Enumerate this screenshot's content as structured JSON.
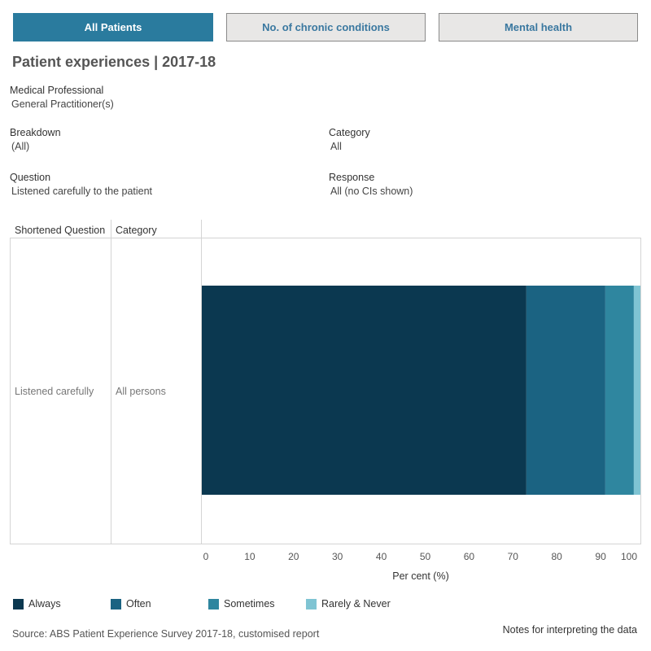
{
  "tabs": [
    {
      "label": "All Patients",
      "active": true
    },
    {
      "label": "No. of chronic conditions",
      "active": false
    },
    {
      "label": "Mental health",
      "active": false
    }
  ],
  "title": "Patient experiences | 2017-18",
  "filters": {
    "medical_professional": {
      "label": "Medical Professional",
      "value": "General Practitioner(s)"
    },
    "breakdown": {
      "label": "Breakdown",
      "value": "(All)"
    },
    "category": {
      "label": "Category",
      "value": "All"
    },
    "question": {
      "label": "Question",
      "value": "Listened carefully to the patient"
    },
    "response": {
      "label": "Response",
      "value": "All (no CIs shown)"
    }
  },
  "table": {
    "headers": [
      "Shortened Question",
      "Category"
    ],
    "rows": [
      {
        "question": "Listened carefully",
        "category": "All persons"
      }
    ]
  },
  "chart_data": {
    "type": "bar",
    "orientation": "horizontal",
    "stacked": true,
    "categories": [
      "Listened carefully"
    ],
    "series": [
      {
        "name": "Always",
        "values": [
          74.0
        ],
        "color": "#0b3850"
      },
      {
        "name": "Often",
        "values": [
          18.0
        ],
        "color": "#1b6382"
      },
      {
        "name": "Sometimes",
        "values": [
          6.5
        ],
        "color": "#2f869f"
      },
      {
        "name": "Rarely & Never",
        "values": [
          1.5
        ],
        "color": "#7fc4d3"
      }
    ],
    "xlabel": "Per cent (%)",
    "xlim": [
      0,
      100
    ],
    "xticks": [
      "0",
      "10",
      "20",
      "30",
      "40",
      "50",
      "60",
      "70",
      "80",
      "90",
      "100"
    ],
    "legend_position": "bottom"
  },
  "source": "Source: ABS Patient Experience Survey 2017-18, customised report",
  "notes_link": "Notes for interpreting the data"
}
